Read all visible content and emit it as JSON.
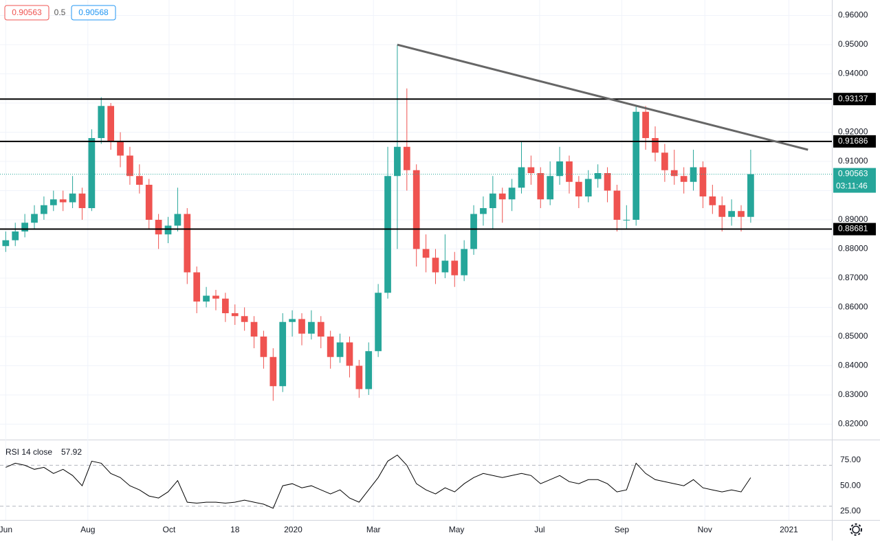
{
  "chart_data": {
    "type": "candlestick",
    "header": {
      "bid": 0.90563,
      "spread": 0.5,
      "ask": 0.90568
    },
    "countdown": "03:11:46",
    "candles": [
      [
        0.881,
        0.886,
        0.879,
        0.883
      ],
      [
        0.883,
        0.889,
        0.881,
        0.886
      ],
      [
        0.886,
        0.892,
        0.884,
        0.889
      ],
      [
        0.889,
        0.895,
        0.887,
        0.892
      ],
      [
        0.892,
        0.898,
        0.89,
        0.895
      ],
      [
        0.895,
        0.9,
        0.893,
        0.897
      ],
      [
        0.897,
        0.9,
        0.893,
        0.896
      ],
      [
        0.896,
        0.905,
        0.894,
        0.899
      ],
      [
        0.899,
        0.901,
        0.89,
        0.894
      ],
      [
        0.894,
        0.921,
        0.893,
        0.918
      ],
      [
        0.918,
        0.932,
        0.916,
        0.929
      ],
      [
        0.929,
        0.93,
        0.914,
        0.917
      ],
      [
        0.917,
        0.92,
        0.908,
        0.912
      ],
      [
        0.912,
        0.915,
        0.902,
        0.905
      ],
      [
        0.905,
        0.909,
        0.899,
        0.902
      ],
      [
        0.902,
        0.904,
        0.887,
        0.89
      ],
      [
        0.89,
        0.892,
        0.88,
        0.885
      ],
      [
        0.885,
        0.891,
        0.882,
        0.888
      ],
      [
        0.888,
        0.901,
        0.886,
        0.892
      ],
      [
        0.892,
        0.894,
        0.868,
        0.872
      ],
      [
        0.872,
        0.874,
        0.858,
        0.862
      ],
      [
        0.862,
        0.867,
        0.86,
        0.864
      ],
      [
        0.864,
        0.866,
        0.859,
        0.863
      ],
      [
        0.863,
        0.865,
        0.855,
        0.858
      ],
      [
        0.858,
        0.861,
        0.854,
        0.857
      ],
      [
        0.857,
        0.86,
        0.852,
        0.855
      ],
      [
        0.855,
        0.857,
        0.846,
        0.85
      ],
      [
        0.85,
        0.852,
        0.839,
        0.843
      ],
      [
        0.843,
        0.846,
        0.828,
        0.833
      ],
      [
        0.833,
        0.858,
        0.831,
        0.855
      ],
      [
        0.855,
        0.859,
        0.85,
        0.856
      ],
      [
        0.856,
        0.858,
        0.847,
        0.851
      ],
      [
        0.851,
        0.859,
        0.849,
        0.855
      ],
      [
        0.855,
        0.857,
        0.846,
        0.85
      ],
      [
        0.85,
        0.852,
        0.839,
        0.843
      ],
      [
        0.843,
        0.851,
        0.841,
        0.848
      ],
      [
        0.848,
        0.85,
        0.836,
        0.84
      ],
      [
        0.84,
        0.842,
        0.829,
        0.832
      ],
      [
        0.832,
        0.848,
        0.83,
        0.845
      ],
      [
        0.845,
        0.868,
        0.843,
        0.865
      ],
      [
        0.865,
        0.915,
        0.863,
        0.905
      ],
      [
        0.905,
        0.95,
        0.88,
        0.915
      ],
      [
        0.915,
        0.935,
        0.9,
        0.907
      ],
      [
        0.907,
        0.909,
        0.874,
        0.88
      ],
      [
        0.88,
        0.885,
        0.872,
        0.877
      ],
      [
        0.877,
        0.88,
        0.868,
        0.872
      ],
      [
        0.872,
        0.885,
        0.87,
        0.876
      ],
      [
        0.876,
        0.879,
        0.867,
        0.871
      ],
      [
        0.871,
        0.883,
        0.869,
        0.88
      ],
      [
        0.88,
        0.895,
        0.878,
        0.892
      ],
      [
        0.892,
        0.898,
        0.888,
        0.894
      ],
      [
        0.894,
        0.905,
        0.887,
        0.899
      ],
      [
        0.899,
        0.901,
        0.889,
        0.897
      ],
      [
        0.897,
        0.904,
        0.893,
        0.901
      ],
      [
        0.901,
        0.917,
        0.899,
        0.908
      ],
      [
        0.908,
        0.912,
        0.902,
        0.906
      ],
      [
        0.906,
        0.908,
        0.894,
        0.897
      ],
      [
        0.897,
        0.91,
        0.895,
        0.905
      ],
      [
        0.905,
        0.915,
        0.902,
        0.91
      ],
      [
        0.91,
        0.912,
        0.899,
        0.903
      ],
      [
        0.903,
        0.905,
        0.894,
        0.898
      ],
      [
        0.898,
        0.907,
        0.896,
        0.904
      ],
      [
        0.904,
        0.909,
        0.901,
        0.906
      ],
      [
        0.906,
        0.908,
        0.896,
        0.9
      ],
      [
        0.9,
        0.902,
        0.886,
        0.89
      ],
      [
        0.89,
        0.895,
        0.887,
        0.89
      ],
      [
        0.89,
        0.929,
        0.888,
        0.927
      ],
      [
        0.927,
        0.929,
        0.914,
        0.918
      ],
      [
        0.918,
        0.922,
        0.91,
        0.913
      ],
      [
        0.913,
        0.916,
        0.903,
        0.907
      ],
      [
        0.907,
        0.914,
        0.902,
        0.905
      ],
      [
        0.905,
        0.908,
        0.899,
        0.903
      ],
      [
        0.903,
        0.914,
        0.9,
        0.908
      ],
      [
        0.908,
        0.91,
        0.894,
        0.898
      ],
      [
        0.898,
        0.902,
        0.892,
        0.895
      ],
      [
        0.895,
        0.898,
        0.886,
        0.891
      ],
      [
        0.891,
        0.897,
        0.888,
        0.893
      ],
      [
        0.893,
        0.895,
        0.886,
        0.891
      ],
      [
        0.891,
        0.914,
        0.889,
        0.90563
      ]
    ],
    "up_color": "#26a69a",
    "down_color": "#ef5350",
    "xlim": [
      -0.6,
      86.5
    ],
    "xticks": [
      {
        "value": 0,
        "label": "Jun"
      },
      {
        "value": 8.6,
        "label": "Aug"
      },
      {
        "value": 17.1,
        "label": "Oct"
      },
      {
        "value": 24.0,
        "label": "18"
      },
      {
        "value": 30.1,
        "label": "2020"
      },
      {
        "value": 38.5,
        "label": "Mar"
      },
      {
        "value": 47.2,
        "label": "May"
      },
      {
        "value": 55.9,
        "label": "Jul"
      },
      {
        "value": 64.5,
        "label": "Sep"
      },
      {
        "value": 73.2,
        "label": "Nov"
      },
      {
        "value": 82.0,
        "label": "2021"
      }
    ],
    "ylim": [
      0.8147,
      0.9653
    ],
    "yticks": [
      {
        "value": 0.82,
        "label": "0.82000"
      },
      {
        "value": 0.83,
        "label": "0.83000"
      },
      {
        "value": 0.84,
        "label": "0.84000"
      },
      {
        "value": 0.85,
        "label": "0.85000"
      },
      {
        "value": 0.86,
        "label": "0.86000"
      },
      {
        "value": 0.87,
        "label": "0.87000"
      },
      {
        "value": 0.88,
        "label": "0.88000"
      },
      {
        "value": 0.89,
        "label": "0.89000"
      },
      {
        "value": 0.9,
        "label": "0.90000"
      },
      {
        "value": 0.91,
        "label": "0.91000"
      },
      {
        "value": 0.92,
        "label": "0.92000"
      },
      {
        "value": 0.93,
        "label": "0.93000"
      },
      {
        "value": 0.94,
        "label": "0.94000"
      },
      {
        "value": 0.95,
        "label": "0.95000"
      },
      {
        "value": 0.96,
        "label": "0.96000"
      }
    ],
    "levels": [
      0.93137,
      0.91686,
      0.88681
    ],
    "trendline": {
      "start": [
        41.0,
        0.95
      ],
      "end": [
        84.0,
        0.914
      ]
    },
    "rsi": {
      "label": "RSI 14 close",
      "color": "#000000",
      "values": [
        68,
        72,
        70,
        66,
        68,
        62,
        66,
        60,
        50,
        74,
        72,
        62,
        58,
        50,
        46,
        40,
        38,
        44,
        55,
        34,
        33,
        34,
        34,
        33,
        34,
        36,
        34,
        32,
        28,
        50,
        52,
        48,
        50,
        46,
        42,
        46,
        38,
        34,
        46,
        58,
        74,
        80,
        70,
        52,
        46,
        42,
        48,
        44,
        52,
        58,
        62,
        60,
        58,
        60,
        62,
        60,
        52,
        56,
        60,
        54,
        52,
        56,
        56,
        52,
        44,
        46,
        72,
        62,
        56,
        54,
        52,
        50,
        56,
        48,
        46,
        44,
        46,
        44,
        57.92
      ],
      "ylim": [
        16.6,
        94.4
      ],
      "yticks": [
        {
          "value": 25,
          "label": "25.00"
        },
        {
          "value": 50,
          "label": "50.00"
        },
        {
          "value": 75,
          "label": "75.00"
        }
      ],
      "bands": [
        30,
        70
      ]
    }
  }
}
